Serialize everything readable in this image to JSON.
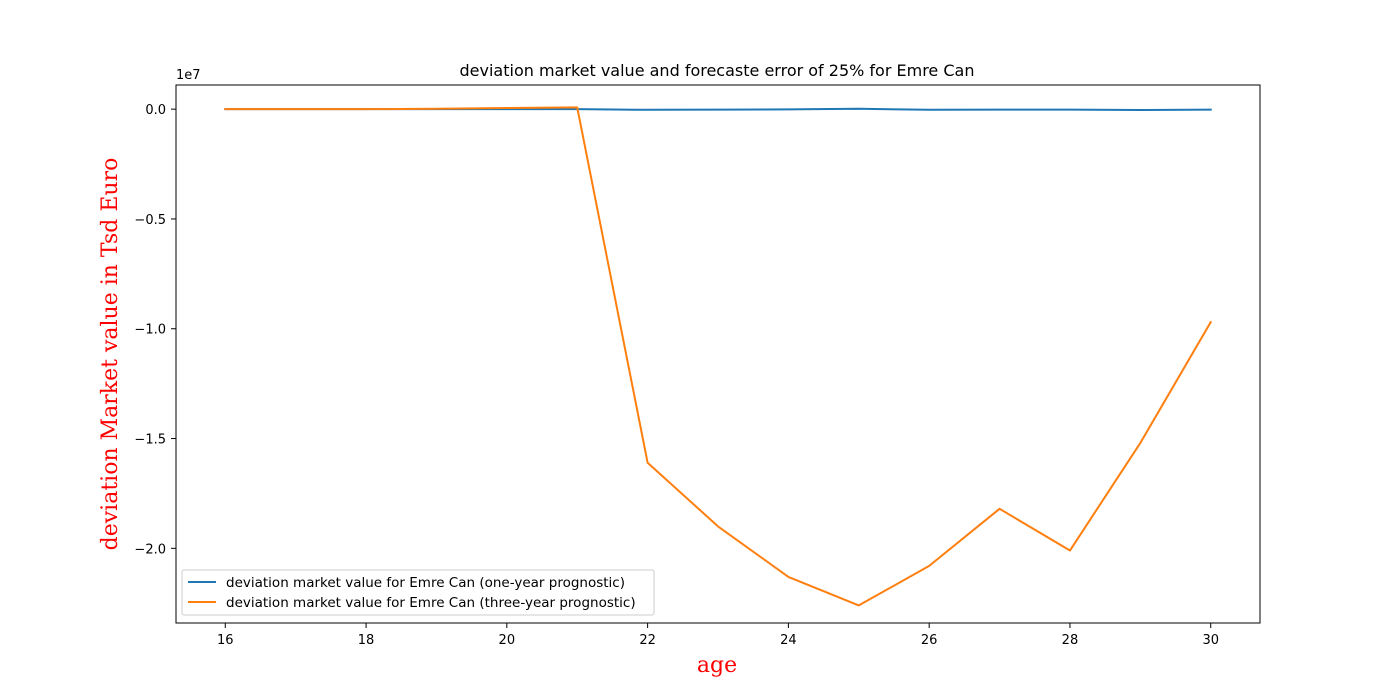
{
  "chart_data": {
    "type": "line",
    "title": "deviation market value and forecaste error of 25% for Emre Can",
    "xlabel": "age",
    "ylabel": "deviation Market value in Tsd Euro",
    "y_offset_label": "1e7",
    "x": [
      16,
      17,
      18,
      19,
      20,
      21,
      22,
      23,
      24,
      25,
      26,
      27,
      28,
      29,
      30
    ],
    "xlim": [
      15.3,
      30.7
    ],
    "ylim": [
      -23.4,
      1.1
    ],
    "x_ticks": [
      16,
      18,
      20,
      22,
      24,
      26,
      28,
      30
    ],
    "x_tick_labels": [
      "16",
      "18",
      "20",
      "22",
      "24",
      "26",
      "28",
      "30"
    ],
    "y_ticks": [
      0.0,
      -5.0,
      -10.0,
      -15.0,
      -20.0
    ],
    "y_tick_labels": [
      "0.0",
      "−0.5",
      "−1.0",
      "−1.5",
      "−2.0"
    ],
    "y_unit_note": "y values in millions (axis scale 1e7)",
    "grid": false,
    "legend_position": "lower-left",
    "series": [
      {
        "name": "deviation market value for Emre Can (one-year prognostic)",
        "color": "#1f77b4",
        "values": [
          0.0,
          0.0,
          0.0,
          0.0,
          0.0,
          0.0,
          -0.03,
          -0.02,
          -0.01,
          0.02,
          -0.03,
          -0.02,
          -0.02,
          -0.04,
          -0.02
        ]
      },
      {
        "name": "deviation market value for Emre Can (three-year prognostic)",
        "color": "#ff7f0e",
        "values": [
          0.0,
          0.0,
          0.0,
          0.02,
          0.05,
          0.08,
          -16.1,
          -19.0,
          -21.3,
          -22.6,
          -20.8,
          -18.2,
          -20.1,
          -15.2,
          -9.7
        ]
      }
    ]
  }
}
